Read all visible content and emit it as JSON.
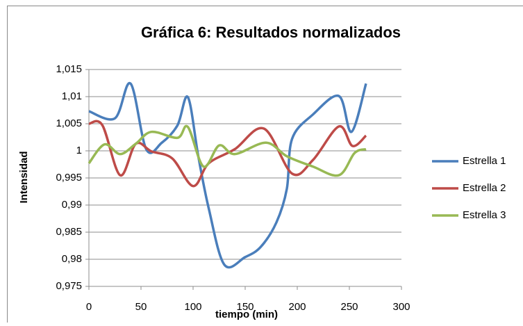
{
  "chart_data": {
    "type": "line",
    "title": "Gráfica 6: Resultados normalizados",
    "xlabel": "tiempo (min)",
    "ylabel": "Intensidad",
    "xlim": [
      0,
      300
    ],
    "xticks": [
      0,
      50,
      100,
      150,
      200,
      250,
      300
    ],
    "ylim": [
      0.975,
      1.015
    ],
    "yticks": [
      {
        "value": 0.975,
        "label": "0,975"
      },
      {
        "value": 0.98,
        "label": "0,98"
      },
      {
        "value": 0.985,
        "label": "0,985"
      },
      {
        "value": 0.99,
        "label": "0,99"
      },
      {
        "value": 0.995,
        "label": "0,995"
      },
      1,
      {
        "value": 1.005,
        "label": "1,005"
      },
      {
        "value": 1.01,
        "label": "1,01"
      },
      {
        "value": 1.015,
        "label": "1,015"
      }
    ],
    "grid": true,
    "legend": "right",
    "series": [
      {
        "name": "Estrella 1",
        "color": "#4a7ebb",
        "x": [
          0,
          25,
          40,
          55,
          70,
          85,
          95,
          105,
          115,
          130,
          150,
          165,
          180,
          190,
          195,
          215,
          240,
          252,
          266
        ],
        "values": [
          1.0073,
          1.006,
          1.0124,
          1.0003,
          1.0015,
          1.0047,
          1.0099,
          0.999,
          0.9894,
          0.979,
          0.9804,
          0.9823,
          0.9868,
          0.993,
          1.0022,
          1.0067,
          1.0101,
          1.0035,
          1.0124
        ]
      },
      {
        "name": "Estrella 2",
        "color": "#be4b48",
        "x": [
          0,
          13,
          30,
          45,
          60,
          80,
          100,
          115,
          140,
          168,
          195,
          215,
          240,
          253,
          266
        ],
        "values": [
          1.005,
          1.0047,
          0.9955,
          1.0013,
          0.9999,
          0.9986,
          0.9935,
          0.9977,
          1.0003,
          1.0041,
          0.9958,
          0.9983,
          1.0045,
          1.0009,
          1.0028
        ]
      },
      {
        "name": "Estrella 3",
        "color": "#98b954",
        "x": [
          0,
          15,
          30,
          45,
          60,
          85,
          95,
          110,
          125,
          140,
          170,
          190,
          215,
          240,
          255,
          266
        ],
        "values": [
          0.9977,
          1.0012,
          0.9994,
          1.0013,
          1.0035,
          1.0024,
          1.0044,
          0.9971,
          1.001,
          0.9994,
          1.0015,
          0.999,
          0.9971,
          0.9955,
          0.9996,
          1.0003
        ]
      }
    ]
  }
}
